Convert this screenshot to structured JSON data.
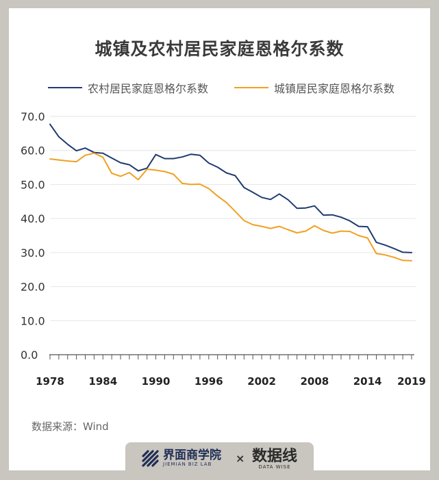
{
  "header": {
    "title": "城镇及农村居民家庭恩格尔系数"
  },
  "chart_data": {
    "type": "line",
    "title": "城镇及农村居民家庭恩格尔系数",
    "xlabel": "",
    "ylabel": "",
    "ylim": [
      0,
      70
    ],
    "xlim": [
      1978,
      2019
    ],
    "yticks": [
      "0.0",
      "10.0",
      "20.0",
      "30.0",
      "40.0",
      "50.0",
      "60.0",
      "70.0"
    ],
    "xticks": [
      "1978",
      "1984",
      "1990",
      "1996",
      "2002",
      "2008",
      "2014",
      "2019"
    ],
    "legend_position": "top",
    "grid": true,
    "x": [
      1978,
      1979,
      1980,
      1981,
      1982,
      1983,
      1984,
      1985,
      1986,
      1987,
      1988,
      1989,
      1990,
      1991,
      1992,
      1993,
      1994,
      1995,
      1996,
      1997,
      1998,
      1999,
      2000,
      2001,
      2002,
      2003,
      2004,
      2005,
      2006,
      2007,
      2008,
      2009,
      2010,
      2011,
      2012,
      2013,
      2014,
      2015,
      2016,
      2017,
      2018,
      2019
    ],
    "series": [
      {
        "name": "农村居民家庭恩格尔系数",
        "color": "#1f3a6e",
        "values": [
          67.7,
          64.0,
          61.8,
          59.9,
          60.7,
          59.4,
          59.2,
          57.8,
          56.4,
          55.8,
          54.0,
          54.8,
          58.8,
          57.6,
          57.6,
          58.1,
          58.9,
          58.6,
          56.3,
          55.1,
          53.4,
          52.6,
          49.1,
          47.7,
          46.2,
          45.6,
          47.2,
          45.5,
          43.0,
          43.1,
          43.7,
          41.0,
          41.1,
          40.4,
          39.3,
          37.7,
          37.6,
          33.0,
          32.2,
          31.2,
          30.1,
          30.0
        ]
      },
      {
        "name": "城镇居民家庭恩格尔系数",
        "color": "#f0a020",
        "values": [
          57.5,
          57.2,
          56.9,
          56.7,
          58.6,
          59.2,
          58.0,
          53.3,
          52.4,
          53.5,
          51.4,
          54.5,
          54.2,
          53.8,
          53.0,
          50.3,
          50.0,
          50.1,
          48.8,
          46.6,
          44.7,
          42.1,
          39.4,
          38.2,
          37.7,
          37.1,
          37.7,
          36.7,
          35.8,
          36.3,
          37.9,
          36.5,
          35.7,
          36.3,
          36.2,
          35.0,
          34.3,
          29.7,
          29.3,
          28.6,
          27.7,
          27.6
        ]
      }
    ]
  },
  "source": {
    "text": "数据来源：Wind"
  },
  "footer": {
    "brand1_name": "界面商学院",
    "brand1_sub": "JIEMIAN BIZ LAB",
    "times": "×",
    "brand2_name": "数据线",
    "brand2_sub": "DATA WISE"
  },
  "colors": {
    "background": "#ffffff",
    "frame": "#c9c5bf",
    "rural": "#1f3a6e",
    "urban": "#f0a020"
  }
}
